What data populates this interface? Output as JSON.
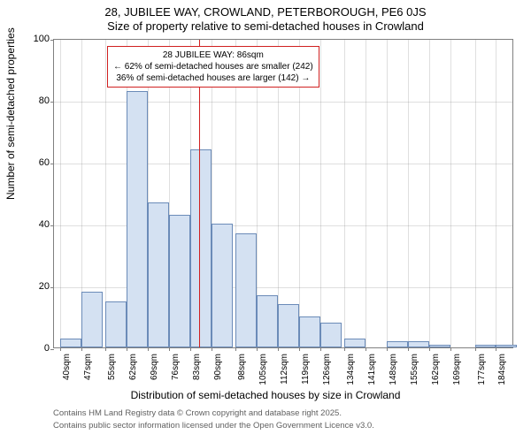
{
  "title_main": "28, JUBILEE WAY, CROWLAND, PETERBOROUGH, PE6 0JS",
  "title_sub": "Size of property relative to semi-detached houses in Crowland",
  "y_label": "Number of semi-detached properties",
  "x_label": "Distribution of semi-detached houses by size in Crowland",
  "attribution_1": "Contains HM Land Registry data © Crown copyright and database right 2025.",
  "attribution_2": "Contains public sector information licensed under the Open Government Licence v3.0.",
  "annotation": {
    "line1": "28 JUBILEE WAY: 86sqm",
    "line2": "← 62% of semi-detached houses are smaller (242)",
    "line3": "36% of semi-detached houses are larger (142) →"
  },
  "chart": {
    "type": "histogram",
    "ylim": [
      0,
      100
    ],
    "ytick_step": 20,
    "bar_color": "#d4e1f2",
    "bar_border_color": "#6b8bb8",
    "grid_color": "#808080",
    "background_color": "#ffffff",
    "ref_line_color": "#d02020",
    "ref_line_x": 86,
    "x_start": 38,
    "x_end": 190,
    "bar_width_sqm": 7,
    "categories": [
      "40sqm",
      "47sqm",
      "55sqm",
      "62sqm",
      "69sqm",
      "76sqm",
      "83sqm",
      "90sqm",
      "98sqm",
      "105sqm",
      "112sqm",
      "119sqm",
      "126sqm",
      "134sqm",
      "141sqm",
      "148sqm",
      "155sqm",
      "162sqm",
      "169sqm",
      "177sqm",
      "184sqm"
    ],
    "category_starts": [
      40,
      47,
      55,
      62,
      69,
      76,
      83,
      90,
      98,
      105,
      112,
      119,
      126,
      134,
      141,
      148,
      155,
      162,
      169,
      177,
      184
    ],
    "values": [
      3,
      18,
      15,
      83,
      47,
      43,
      64,
      40,
      37,
      17,
      14,
      10,
      8,
      3,
      0,
      2,
      2,
      1,
      0,
      1,
      1
    ],
    "title_fontsize": 13,
    "label_fontsize": 12,
    "tick_fontsize": 11
  }
}
